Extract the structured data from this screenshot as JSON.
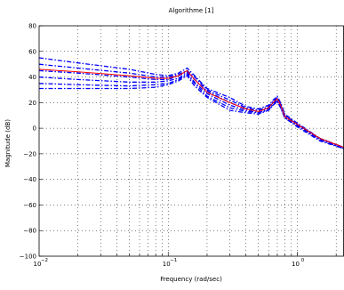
{
  "chart_data": {
    "type": "line",
    "title": "Algorithme  [1]",
    "xlabel": "Frequency  (rad/sec)",
    "ylabel": "Magnitude (dB)",
    "xscale": "log",
    "xlim": [
      0.01,
      2.3
    ],
    "ylim": [
      -100,
      80
    ],
    "grid": true,
    "grid_style": "dotted",
    "line_color": "#0000ff",
    "reference_color": "#ff0000",
    "x_ticks": [
      {
        "value": 0.01,
        "base": "10",
        "exp": "−2"
      },
      {
        "value": 0.1,
        "base": "10",
        "exp": "−1"
      },
      {
        "value": 1,
        "base": "10",
        "exp": "0"
      }
    ],
    "y_ticks": [
      {
        "value": 80,
        "label": "80"
      },
      {
        "value": 60,
        "label": "60"
      },
      {
        "value": 40,
        "label": "40"
      },
      {
        "value": 20,
        "label": "20"
      },
      {
        "value": 0,
        "label": "0"
      },
      {
        "value": -20,
        "label": "−20"
      },
      {
        "value": -40,
        "label": "−40"
      },
      {
        "value": -60,
        "label": "−60"
      },
      {
        "value": -80,
        "label": "−80"
      },
      {
        "value": -100,
        "label": "−100"
      }
    ],
    "x": [
      0.01,
      0.02,
      0.05,
      0.08,
      0.1,
      0.12,
      0.14,
      0.16,
      0.2,
      0.3,
      0.4,
      0.5,
      0.6,
      0.65,
      0.7,
      0.75,
      0.8,
      1.0,
      1.5,
      2.3
    ],
    "series": [
      {
        "style": "dash-dot",
        "values": [
          55,
          51,
          46,
          42,
          41,
          43,
          47,
          41,
          31,
          24,
          17,
          15,
          18,
          22,
          25,
          19,
          11,
          4,
          -8,
          -15
        ]
      },
      {
        "style": "dash-dot",
        "values": [
          50,
          47,
          43,
          40,
          40,
          42,
          45,
          40,
          30,
          22,
          16,
          14,
          17,
          21,
          24,
          18,
          10,
          3,
          -8,
          -15
        ]
      },
      {
        "style": "dash-dot",
        "values": [
          45,
          43,
          40,
          38,
          38,
          41,
          44,
          38,
          29,
          20,
          15,
          13,
          16,
          20,
          23,
          17,
          10,
          3,
          -9,
          -15
        ]
      },
      {
        "style": "dash-dot",
        "values": [
          40,
          38,
          36,
          36,
          37,
          39,
          43,
          36,
          27,
          18,
          14,
          12,
          15,
          19,
          22,
          16,
          9,
          2,
          -9,
          -16
        ]
      },
      {
        "style": "dash-dot",
        "values": [
          35,
          34,
          33,
          34,
          35,
          38,
          42,
          35,
          25,
          16,
          13,
          12,
          14,
          18,
          21,
          15,
          8,
          2,
          -9,
          -16
        ]
      },
      {
        "style": "dash-dot",
        "values": [
          31,
          31,
          31,
          32,
          34,
          37,
          41,
          33,
          24,
          14,
          12,
          11,
          14,
          18,
          21,
          15,
          8,
          1,
          -10,
          -16
        ]
      }
    ],
    "reference": {
      "style": "solid",
      "values": [
        46,
        44,
        41,
        39,
        39,
        41,
        45,
        38,
        28,
        20,
        15,
        13,
        16,
        20,
        23,
        17,
        9,
        3,
        -8,
        -15
      ]
    }
  }
}
